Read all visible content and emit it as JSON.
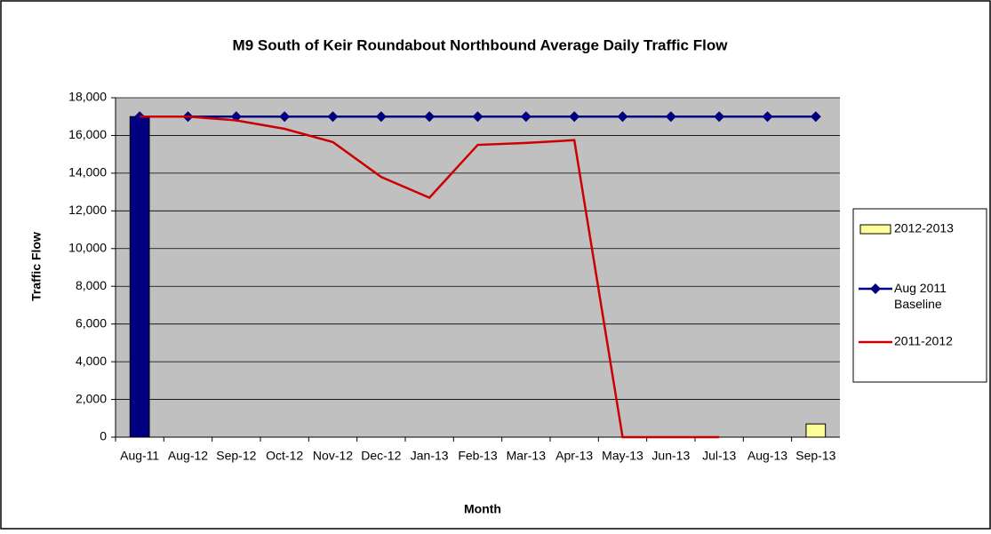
{
  "chart_data": {
    "type": "combo",
    "title": "M9 South of Keir Roundabout Northbound Average Daily Traffic Flow",
    "x_label": "Month",
    "y_label": "Traffic Flow",
    "categories": [
      "Aug-11",
      "Aug-12",
      "Sep-12",
      "Oct-12",
      "Nov-12",
      "Dec-12",
      "Jan-13",
      "Feb-13",
      "Mar-13",
      "Apr-13",
      "May-13",
      "Jun-13",
      "Jul-13",
      "Aug-13",
      "Sep-13"
    ],
    "series": [
      {
        "name": "2012-2013",
        "kind": "bar",
        "color": "#ffff99",
        "point_colors": [
          "#000080",
          null,
          null,
          null,
          null,
          null,
          null,
          null,
          null,
          null,
          null,
          null,
          null,
          null,
          null
        ],
        "values": [
          17000,
          null,
          null,
          null,
          null,
          null,
          null,
          null,
          null,
          null,
          null,
          null,
          null,
          null,
          700
        ]
      },
      {
        "name": "Aug 2011 Baseline",
        "kind": "line",
        "marker": true,
        "color": "#000080",
        "values": [
          17000,
          17000,
          17000,
          17000,
          17000,
          17000,
          17000,
          17000,
          17000,
          17000,
          17000,
          17000,
          17000,
          17000,
          17000
        ]
      },
      {
        "name": "2011-2012",
        "kind": "line",
        "marker": false,
        "color": "#cc0000",
        "values": [
          17000,
          17000,
          16800,
          16350,
          15650,
          13800,
          12700,
          15500,
          15600,
          15750,
          0,
          0,
          0,
          null,
          null
        ]
      }
    ],
    "ylim": [
      0,
      18000
    ],
    "yticks": [
      0,
      {
        "value": 2000,
        "label": "2,000"
      },
      {
        "value": 4000,
        "label": "4,000"
      },
      {
        "value": 6000,
        "label": "6,000"
      },
      {
        "value": 8000,
        "label": "8,000"
      },
      {
        "value": 10000,
        "label": "10,000"
      },
      {
        "value": 12000,
        "label": "12,000"
      },
      {
        "value": 14000,
        "label": "14,000"
      },
      {
        "value": 16000,
        "label": "16,000"
      },
      {
        "value": 18000,
        "label": "18,000"
      }
    ],
    "grid": true,
    "legend": "right"
  }
}
